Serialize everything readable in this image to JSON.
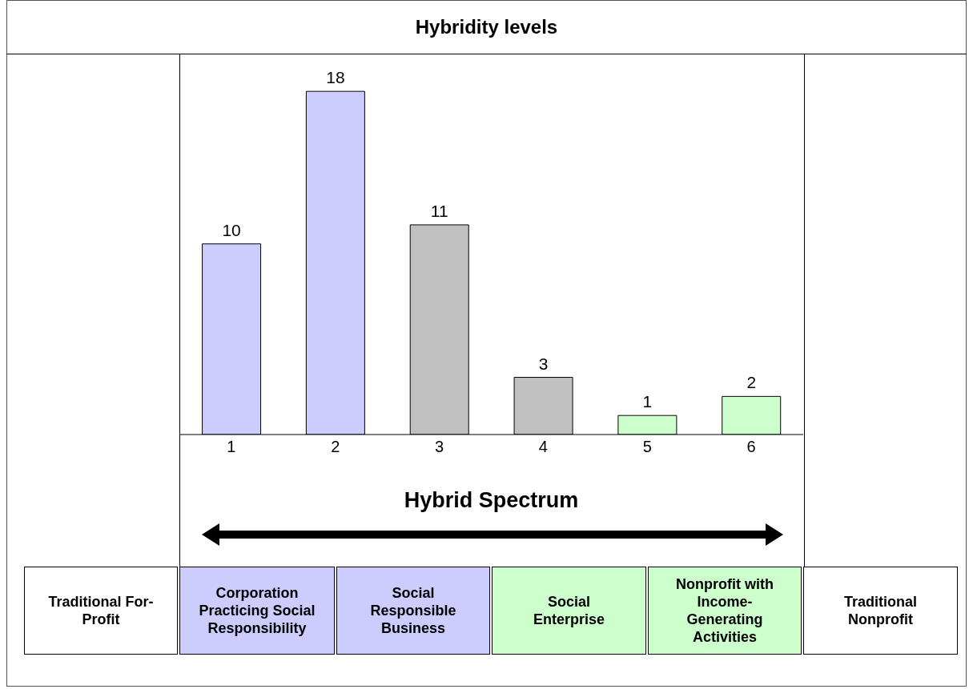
{
  "chart_data": {
    "type": "bar",
    "title": "Hybridity levels",
    "xlabel": "Hybrid Spectrum",
    "categories": [
      "1",
      "2",
      "3",
      "4",
      "5",
      "6"
    ],
    "values": [
      10,
      18,
      11,
      3,
      1,
      2
    ],
    "colors": [
      "#ccccff",
      "#ccccff",
      "#c0c0c0",
      "#c0c0c0",
      "#ccffcc",
      "#ccffcc"
    ],
    "data_labels": true,
    "annotations": [
      "Traditional For-Profit",
      "Corporation Practicing Social Responsibility",
      "Social Responsible Business",
      "Social Enterprise",
      "Nonprofit with Income-Generating Activities",
      "Traditional Nonprofit"
    ]
  }
}
